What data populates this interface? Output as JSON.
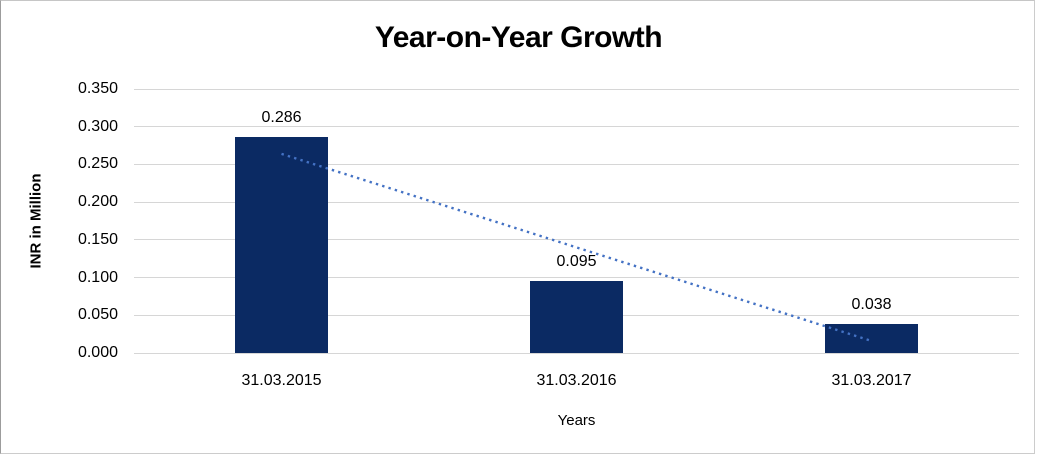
{
  "chart_data": {
    "type": "bar",
    "title": "Year-on-Year Growth",
    "categories": [
      "31.03.2015",
      "31.03.2016",
      "31.03.2017"
    ],
    "values": [
      0.286,
      0.095,
      0.038
    ],
    "data_labels": [
      "0.286",
      "0.095",
      "0.038"
    ],
    "xlabel": "Years",
    "ylabel": "INR in Million",
    "ylim": [
      0,
      0.35
    ],
    "ytick_step": 0.05,
    "ytick_labels": [
      "0.000",
      "0.050",
      "0.100",
      "0.150",
      "0.200",
      "0.250",
      "0.300",
      "0.350"
    ],
    "grid": true,
    "legend": "none",
    "trendline": {
      "type": "linear",
      "style": "dotted",
      "start_value": 0.264,
      "end_value": 0.016
    },
    "colors": {
      "bar": "#0b2a63",
      "trendline": "#4472c4",
      "gridline": "#d6d6d6",
      "text": "#000000"
    }
  }
}
